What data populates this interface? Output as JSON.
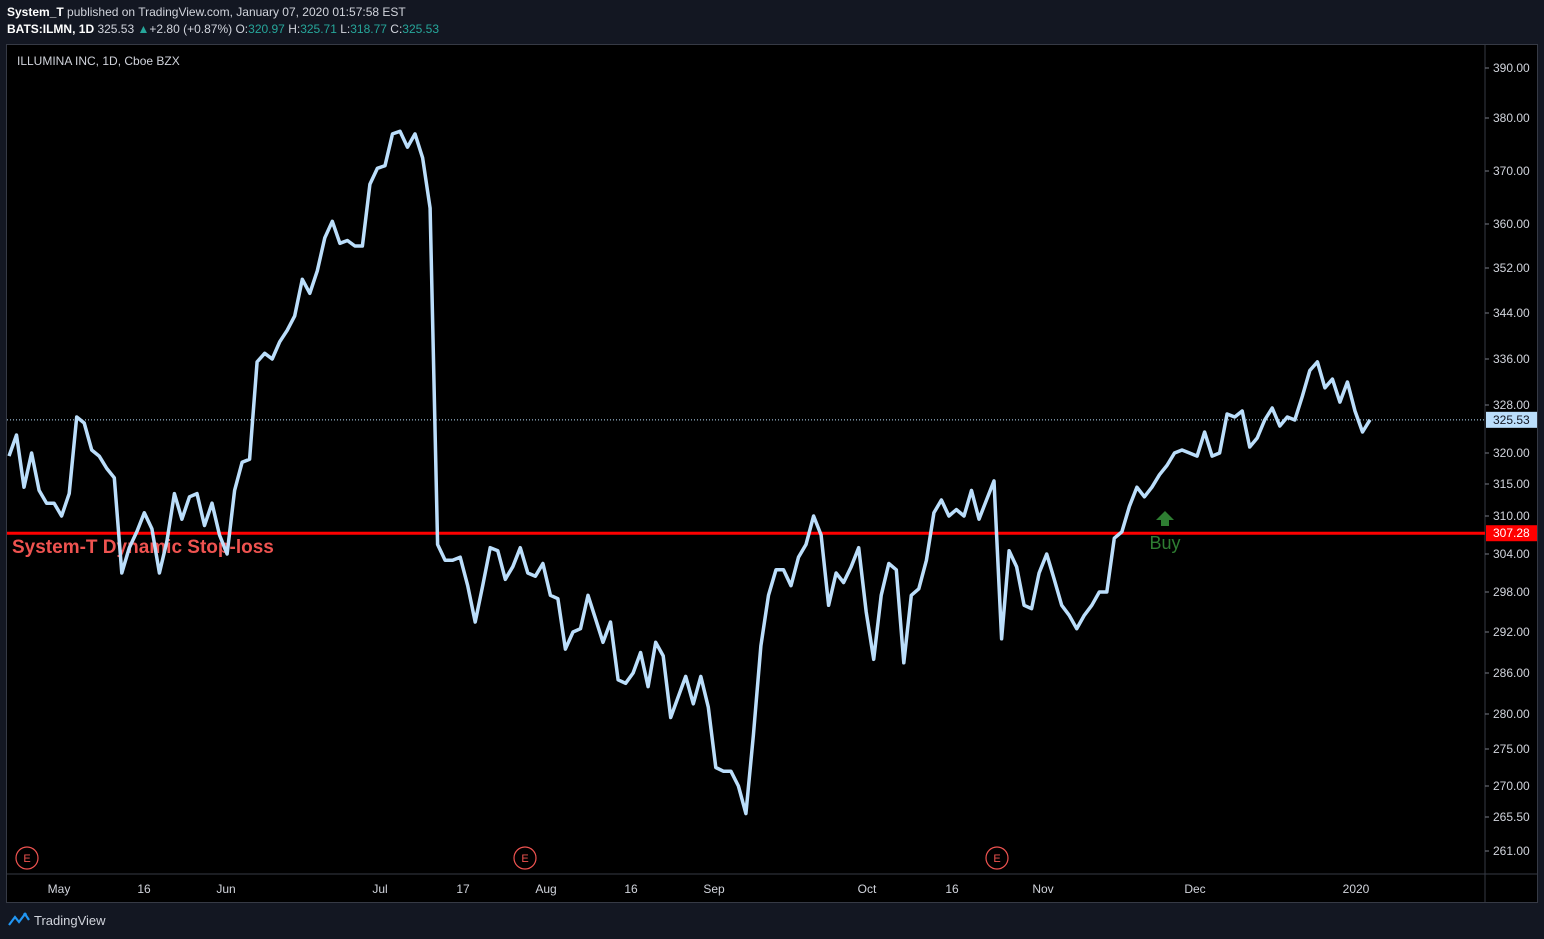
{
  "header": {
    "author": "System_T",
    "published_text": "published on TradingView.com, January 07, 2020 01:57:58 EST",
    "symbol": "BATS:ILMN, 1D",
    "last": "325.53",
    "change": "+2.80 (+0.87%)",
    "o_label": "O:",
    "o_value": "320.97",
    "h_label": "H:",
    "h_value": "325.71",
    "l_label": "L:",
    "l_value": "318.77",
    "c_label": "C:",
    "c_value": "325.53"
  },
  "footer": {
    "brand": "TradingView"
  },
  "colors": {
    "line": "#bbdefb",
    "stop_line": "#ff0000",
    "stop_text": "#ef5350",
    "buy": "#2e7d32",
    "earnings": "#ef5350",
    "grid_text": "#d1d4dc",
    "last_price_bg": "#bbdefb"
  },
  "chart_data": {
    "type": "line",
    "title": "ILLUMINA INC, 1D, Cboe BZX",
    "y_ticks": [
      390,
      380,
      370,
      360,
      352,
      344,
      336,
      328,
      320,
      315,
      310,
      304,
      298,
      292,
      286,
      280,
      275,
      270,
      265.5,
      261
    ],
    "y_tick_labels": [
      "390.00",
      "380.00",
      "370.00",
      "360.00",
      "352.00",
      "344.00",
      "336.00",
      "328.00",
      "320.00",
      "315.00",
      "310.00",
      "304.00",
      "298.00",
      "292.00",
      "286.00",
      "280.00",
      "275.00",
      "270.00",
      "265.50",
      "261.00"
    ],
    "x_labels": [
      "May",
      "16",
      "Jun",
      "Jul",
      "17",
      "Aug",
      "16",
      "Sep",
      "Oct",
      "16",
      "Nov",
      "Dec",
      "2020"
    ],
    "last_price": 325.53,
    "last_price_label": "325.53",
    "stop_loss": 307.28,
    "stop_loss_label": "307.28",
    "stop_loss_text": "System-T Dynamic Stop-loss",
    "buy_label": "Buy",
    "earnings_label": "E",
    "close": [
      319.5,
      323,
      314.5,
      320,
      314,
      312,
      312,
      310,
      313.5,
      326,
      325,
      320.5,
      319.5,
      317.5,
      316,
      301,
      305,
      307.5,
      310.5,
      308,
      301,
      306,
      313.5,
      309.5,
      313,
      313.5,
      308.5,
      312,
      307,
      304,
      314,
      318.5,
      319,
      335.5,
      337,
      336,
      339,
      341,
      343.5,
      350,
      347.5,
      351.5,
      357.5,
      360.5,
      356.5,
      357,
      356,
      356,
      367.5,
      370.5,
      371,
      377,
      377.5,
      374.5,
      377,
      372.5,
      363,
      305.5,
      303,
      303,
      303.5,
      299,
      293.5,
      299,
      305,
      304.5,
      300,
      302,
      305,
      301,
      300.5,
      302.5,
      297.5,
      297,
      289.5,
      292,
      292.5,
      297.5,
      294,
      290.5,
      293.5,
      285,
      284.5,
      286,
      289,
      284,
      290.5,
      288.5,
      279.5,
      282.5,
      285.5,
      281.5,
      285.5,
      281,
      272.5,
      272,
      272,
      270,
      266,
      277,
      290,
      297.5,
      301.5,
      301.5,
      299,
      303.5,
      305.5,
      310,
      307,
      296,
      301,
      299.5,
      302,
      305,
      295,
      288,
      297.5,
      302.5,
      301.5,
      287.5,
      297.5,
      298.5,
      303,
      310.5,
      312.5,
      310,
      311,
      310,
      314,
      309.5,
      312.5,
      315.5,
      291,
      304.5,
      302,
      296,
      295.5,
      301,
      304,
      300,
      296,
      294.5,
      292.5,
      294.5,
      296,
      298,
      298,
      306.5,
      307.5,
      311.5,
      314.5,
      313,
      314.5,
      316.5,
      318,
      320,
      320.5,
      320,
      319.5,
      323.5,
      319.5,
      320,
      326.5,
      326,
      327,
      321,
      322.5,
      325.5,
      327.5,
      324.5,
      326,
      325.5,
      329.5,
      334,
      335.5,
      331,
      332.5,
      328.5,
      332,
      327,
      323.5,
      325.53
    ]
  }
}
